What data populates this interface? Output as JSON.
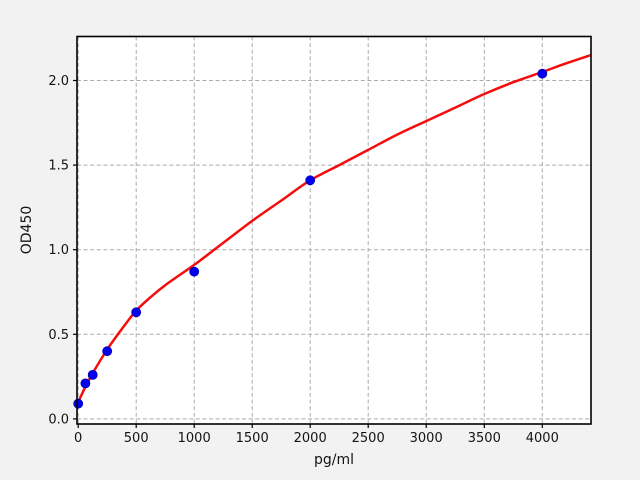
{
  "chart_data": {
    "type": "scatter",
    "title": "",
    "xlabel": "pg/ml",
    "ylabel": "OD450",
    "xlim": [
      -10,
      4420
    ],
    "ylim": [
      -0.03,
      2.26
    ],
    "x_ticks": [
      0,
      500,
      1000,
      1500,
      2000,
      2500,
      3000,
      3500,
      4000
    ],
    "x_tick_labels": [
      "0",
      "500",
      "1000",
      "1500",
      "2000",
      "2500",
      "3000",
      "3500",
      "4000"
    ],
    "y_ticks": [
      0.0,
      0.5,
      1.0,
      1.5,
      2.0
    ],
    "y_tick_labels": [
      "0.0",
      "0.5",
      "1.0",
      "1.5",
      "2.0"
    ],
    "grid": true,
    "grid_style": "dashed",
    "legend": "none",
    "series": [
      {
        "name": "standard-points",
        "type": "scatter",
        "color": "#0000ee",
        "edge_color": "#0000b0",
        "marker": "circle",
        "marker_radius": 4.5,
        "x": [
          0,
          62.5,
          125,
          250,
          500,
          1000,
          2000,
          4000
        ],
        "y": [
          0.09,
          0.21,
          0.26,
          0.4,
          0.63,
          0.87,
          1.41,
          2.04
        ]
      },
      {
        "name": "fit-curve",
        "type": "line",
        "color": "#f50d0d",
        "line_width": 2.5,
        "x": [
          0,
          62.5,
          125,
          250,
          375,
          500,
          625,
          750,
          1000,
          1250,
          1500,
          1750,
          2000,
          2250,
          2500,
          2750,
          3000,
          3250,
          3500,
          3750,
          4000,
          4200,
          4420
        ],
        "y": [
          0.1,
          0.19,
          0.27,
          0.41,
          0.53,
          0.64,
          0.72,
          0.79,
          0.91,
          1.04,
          1.17,
          1.29,
          1.41,
          1.5,
          1.59,
          1.68,
          1.76,
          1.84,
          1.92,
          1.99,
          2.05,
          2.1,
          2.15
        ]
      }
    ],
    "colors": {
      "figure_background": "#f2f2f2",
      "plot_background": "#ffffff",
      "grid": "#ababab",
      "spine": "#000000"
    }
  }
}
